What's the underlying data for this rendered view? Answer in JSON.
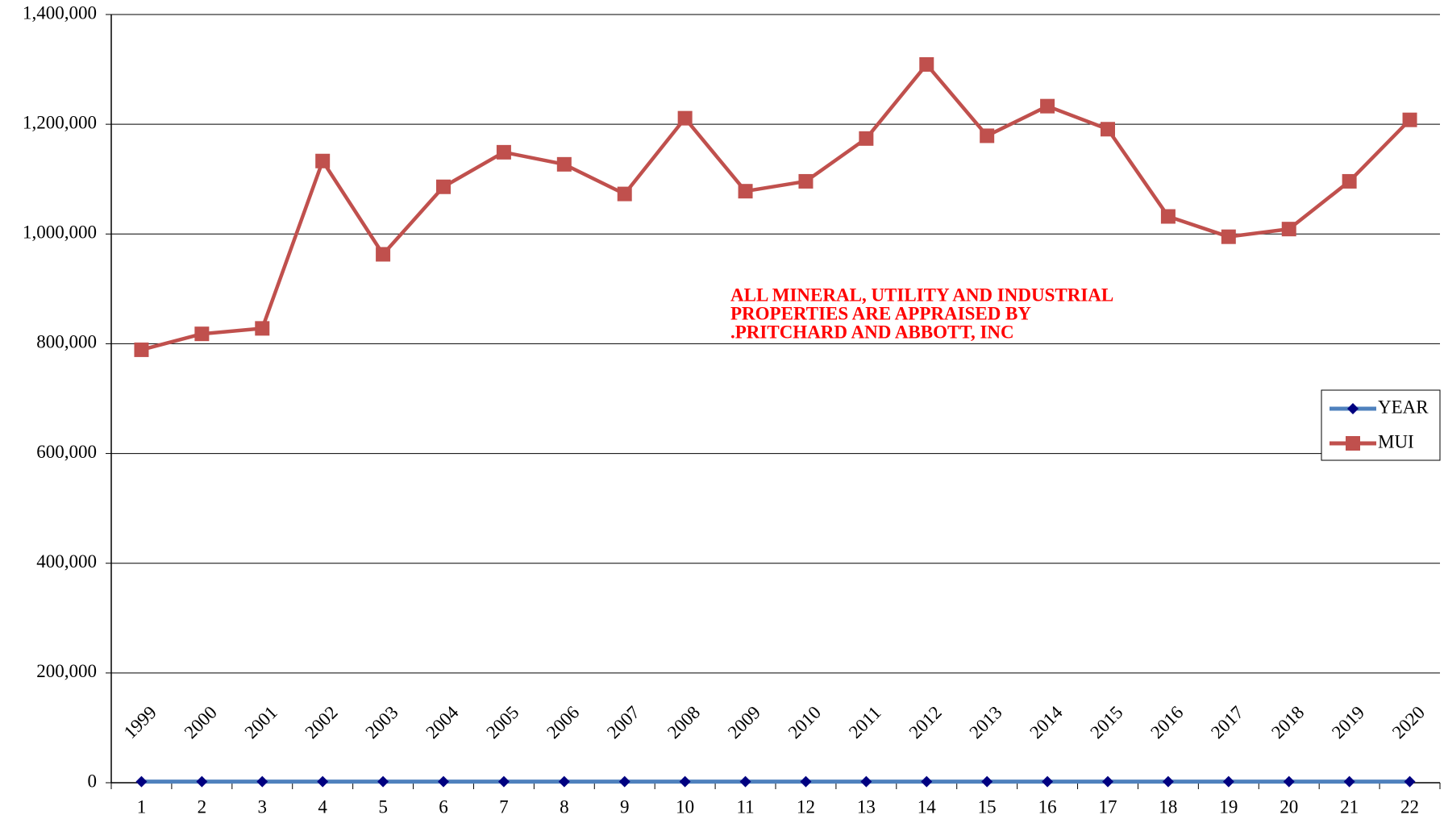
{
  "chart_data": {
    "type": "line",
    "categories": [
      "1",
      "2",
      "3",
      "4",
      "5",
      "6",
      "7",
      "8",
      "9",
      "10",
      "11",
      "12",
      "13",
      "14",
      "15",
      "16",
      "17",
      "18",
      "19",
      "20",
      "21",
      "22"
    ],
    "series": [
      {
        "name": "YEAR",
        "color": "#4f81bd",
        "marker_color": "#000080",
        "values": [
          1999,
          2000,
          2001,
          2002,
          2003,
          2004,
          2005,
          2006,
          2007,
          2008,
          2009,
          2010,
          2011,
          2012,
          2013,
          2014,
          2015,
          2016,
          2017,
          2018,
          2019,
          2020
        ]
      },
      {
        "name": "MUI",
        "color": "#c0504d",
        "values": [
          789000,
          818000,
          828000,
          1133000,
          963000,
          1086000,
          1149000,
          1127000,
          1073000,
          1211000,
          1078000,
          1096000,
          1174000,
          1309000,
          1179000,
          1233000,
          1191000,
          1032000,
          995000,
          1009000,
          1096000,
          1208000
        ]
      }
    ],
    "annotation": [
      "ALL MINERAL, UTILITY AND INDUSTRIAL",
      "PROPERTIES ARE APPRAISED BY",
      ".PRITCHARD AND ABBOTT, INC"
    ],
    "ylim": [
      0,
      1400000
    ],
    "yticks": [
      0,
      {
        "value": 200000,
        "label": "200,000"
      },
      {
        "value": 400000,
        "label": "400,000"
      },
      {
        "value": 600000,
        "label": "600,000"
      },
      {
        "value": 800000,
        "label": "800,000"
      },
      {
        "value": 1000000,
        "label": "1,000,000"
      },
      {
        "value": 1200000,
        "label": "1,200,000"
      },
      {
        "value": 1400000,
        "label": "1,400,000"
      }
    ],
    "grid": true,
    "legend": "right"
  }
}
